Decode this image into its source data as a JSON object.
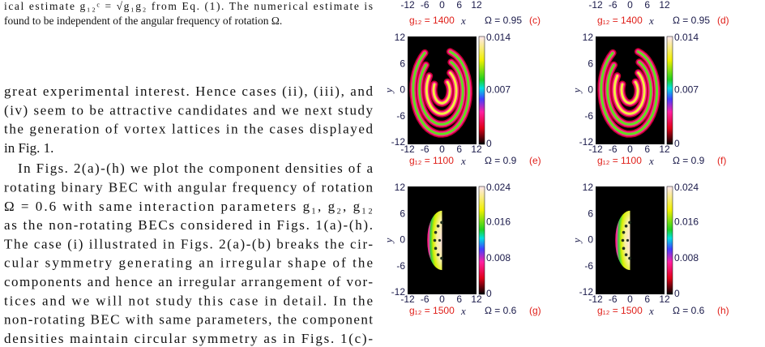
{
  "caption": {
    "lines": [
      "ical estimate g₁₂ᶜ = √g₁g₂ from Eq. (1). The numerical estimate is",
      "found to be independent of the angular frequency of rotation Ω."
    ]
  },
  "body": {
    "paragraphs": [
      [
        "great experimental interest. Hence cases (ii), (iii), and",
        "(iv) seem to be attractive candidates and we next study",
        "the generation of vortex lattices in the cases displayed",
        "in Fig. 1."
      ],
      [
        "In Figs. 2(a)-(h) we plot the component densities of a",
        "rotating binary BEC with angular frequency of rotation",
        "Ω  =  0.6 with same interaction parameters g₁, g₂, g₁₂",
        "as the non-rotating BECs considered in Figs. 1(a)-(h).",
        "The case (i) illustrated in Figs. 2(a)-(b) breaks the cir-",
        "cular symmetry generating an irregular shape of the",
        "components and hence an irregular arrangement of vor-",
        "tices and we will not study this case in detail. In the",
        "non-rotating BEC with same parameters, the component",
        "densities maintain circular symmetry as in Figs. 1(c)-"
      ]
    ]
  },
  "figure": {
    "top_row": {
      "x_ticks": [
        "-12",
        "-6",
        "0",
        "6",
        "12"
      ],
      "panels": [
        {
          "g_label": "g₁₂ = 1400",
          "x_label": "x",
          "omega_label": "Ω = 0.95",
          "tag": "(c)"
        },
        {
          "g_label": "g₁₂ = 1400",
          "x_label": "x",
          "omega_label": "Ω = 0.95",
          "tag": "(d)"
        }
      ]
    },
    "panels": [
      {
        "tag": "(e)",
        "g_label": "g₁₂ = 1100",
        "x_label": "x",
        "omega_label": "Ω = 0.9",
        "y_label": "y",
        "x_ticks": [
          "-12",
          "-6",
          "0",
          "6",
          "12"
        ],
        "y_ticks": [
          "12",
          "6",
          "0",
          "-6",
          "-12"
        ],
        "colorbar_ticks": [
          "0.014",
          "0.007",
          "0"
        ]
      },
      {
        "tag": "(f)",
        "g_label": "g₁₂ = 1100",
        "x_label": "x",
        "omega_label": "Ω = 0.9",
        "y_label": "y",
        "x_ticks": [
          "-12",
          "-6",
          "0",
          "6",
          "12"
        ],
        "y_ticks": [
          "12",
          "6",
          "0",
          "-6",
          "-12"
        ],
        "colorbar_ticks": [
          "0.014",
          "0.007",
          "0"
        ]
      },
      {
        "tag": "(g)",
        "g_label": "g₁₂ = 1500",
        "x_label": "x",
        "omega_label": "Ω = 0.6",
        "y_label": "y",
        "x_ticks": [
          "-12",
          "-6",
          "0",
          "6",
          "12"
        ],
        "y_ticks": [
          "12",
          "6",
          "0",
          "-6",
          "-12"
        ],
        "colorbar_ticks": [
          "0.024",
          "0.016",
          "0.008",
          "0"
        ]
      },
      {
        "tag": "(h)",
        "g_label": "g₁₂ = 1500",
        "x_label": "x",
        "omega_label": "Ω = 0.6",
        "y_label": "y",
        "x_ticks": [
          "-12",
          "-6",
          "0",
          "6",
          "12"
        ],
        "y_ticks": [
          "12",
          "6",
          "0",
          "-6",
          "-12"
        ],
        "colorbar_ticks": [
          "0.024",
          "0.016",
          "0.008",
          "0"
        ]
      }
    ]
  }
}
